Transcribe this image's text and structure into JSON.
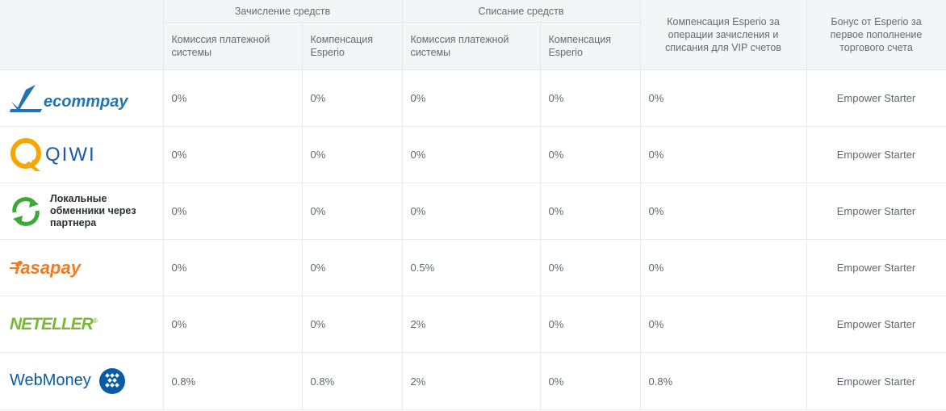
{
  "header": {
    "deposit_group": "Зачисление средств",
    "withdraw_group": "Списание средств",
    "vip_compensation": "Компенсация Esperio за операции зачисления и списания для VIP счетов",
    "bonus": "Бонус от Esperio за первое пополнение торгового счета",
    "commission_label": "Комиссия платежной системы",
    "compensation_label": "Компенсация Esperio"
  },
  "rows": [
    {
      "provider": "ecommpay",
      "logo_text": "ecommpay",
      "dep_commission": "0%",
      "dep_compensation": "0%",
      "wd_commission": "0%",
      "wd_compensation": "0%",
      "vip": "0%",
      "bonus": "Empower Starter"
    },
    {
      "provider": "qiwi",
      "logo_text": "QIWI",
      "dep_commission": "0%",
      "dep_compensation": "0%",
      "wd_commission": "0%",
      "wd_compensation": "0%",
      "vip": "0%",
      "bonus": "Empower Starter"
    },
    {
      "provider": "local-exchangers",
      "logo_text": "Локальные обменники через партнера",
      "dep_commission": "0%",
      "dep_compensation": "0%",
      "wd_commission": "0%",
      "wd_compensation": "0%",
      "vip": "0%",
      "bonus": "Empower Starter"
    },
    {
      "provider": "fasapay",
      "logo_text": "fasapay",
      "dep_commission": "0%",
      "dep_compensation": "0%",
      "wd_commission": "0.5%",
      "wd_compensation": "0%",
      "vip": "0%",
      "bonus": "Empower Starter"
    },
    {
      "provider": "neteller",
      "logo_text": "NETELLER",
      "dep_commission": "0%",
      "dep_compensation": "0%",
      "wd_commission": "2%",
      "wd_compensation": "0%",
      "vip": "0%",
      "bonus": "Empower Starter"
    },
    {
      "provider": "webmoney",
      "logo_text": "WebMoney",
      "dep_commission": "0.8%",
      "dep_compensation": "0.8%",
      "wd_commission": "2%",
      "wd_compensation": "0%",
      "vip": "0.8%",
      "bonus": "Empower Starter"
    }
  ],
  "colors": {
    "header_bg": "#f4f5f6",
    "border": "#e4e6e9",
    "ecommpay": "#1f73b7",
    "qiwi": "#f7a600",
    "exchange": "#3aaa35",
    "fasapay": "#f47a20",
    "neteller": "#79b836",
    "webmoney": "#0a5ba6"
  }
}
